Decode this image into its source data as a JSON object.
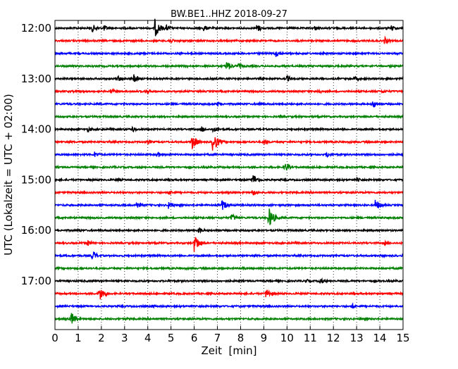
{
  "chart_data": {
    "type": "line",
    "title": "BW.BE1..HHZ 2018-09-27",
    "xlabel": "Zeit  [min]",
    "ylabel": "UTC (Lokalzeit = UTC + 02:00)",
    "xlim": [
      0,
      15
    ],
    "x_ticks": [
      0,
      1,
      2,
      3,
      4,
      5,
      6,
      7,
      8,
      9,
      10,
      11,
      12,
      13,
      14,
      15
    ],
    "x_tick_labels": [
      "0",
      "1",
      "2",
      "3",
      "4",
      "5",
      "6",
      "7",
      "8",
      "9",
      "10",
      "11",
      "12",
      "13",
      "14",
      "15"
    ],
    "y_tick_labels": [
      {
        "row": 0,
        "label": "12:00"
      },
      {
        "row": 4,
        "label": "13:00"
      },
      {
        "row": 8,
        "label": "14:00"
      },
      {
        "row": 12,
        "label": "15:00"
      },
      {
        "row": 16,
        "label": "16:00"
      },
      {
        "row": 20,
        "label": "17:00"
      }
    ],
    "vertical_grid": "dotted",
    "colors": [
      "#000000",
      "#ff0000",
      "#0000ff",
      "#008000"
    ],
    "traces": [
      {
        "start": "12:00",
        "color": "#000000",
        "events": [
          {
            "t": 1.6,
            "amp": 0.4
          },
          {
            "t": 2.1,
            "amp": 0.3
          },
          {
            "t": 4.3,
            "amp": 0.85
          },
          {
            "t": 4.8,
            "amp": 0.3
          },
          {
            "t": 6.4,
            "amp": 0.3
          },
          {
            "t": 8.7,
            "amp": 0.4
          },
          {
            "t": 11.2,
            "amp": 0.25
          },
          {
            "t": 14.5,
            "amp": 0.3
          }
        ]
      },
      {
        "start": "12:15",
        "color": "#ff0000",
        "events": [
          {
            "t": 4.9,
            "amp": 0.3
          },
          {
            "t": 14.2,
            "amp": 0.35
          }
        ]
      },
      {
        "start": "12:30",
        "color": "#0000ff",
        "events": [
          {
            "t": 9.5,
            "amp": 0.35
          },
          {
            "t": 5.4,
            "amp": 0.15
          }
        ]
      },
      {
        "start": "12:45",
        "color": "#008000",
        "events": [
          {
            "t": 7.4,
            "amp": 0.5
          },
          {
            "t": 7.9,
            "amp": 0.3
          }
        ]
      },
      {
        "start": "13:00",
        "color": "#000000",
        "events": [
          {
            "t": 2.7,
            "amp": 0.3
          },
          {
            "t": 3.4,
            "amp": 0.4
          },
          {
            "t": 10.0,
            "amp": 0.3
          },
          {
            "t": 12.9,
            "amp": 0.25
          }
        ]
      },
      {
        "start": "13:15",
        "color": "#ff0000",
        "events": [
          {
            "t": 2.4,
            "amp": 0.25
          },
          {
            "t": 3.9,
            "amp": 0.3
          },
          {
            "t": 11.3,
            "amp": 0.3
          },
          {
            "t": 14.1,
            "amp": 0.2
          }
        ]
      },
      {
        "start": "13:30",
        "color": "#0000ff",
        "events": [
          {
            "t": 7.0,
            "amp": 0.25
          },
          {
            "t": 8.8,
            "amp": 0.25
          },
          {
            "t": 13.7,
            "amp": 0.4
          }
        ]
      },
      {
        "start": "13:45",
        "color": "#008000",
        "events": [
          {
            "t": 9.7,
            "amp": 0.15
          }
        ]
      },
      {
        "start": "14:00",
        "color": "#000000",
        "events": [
          {
            "t": 1.4,
            "amp": 0.25
          },
          {
            "t": 3.3,
            "amp": 0.3
          },
          {
            "t": 6.3,
            "amp": 0.3
          },
          {
            "t": 6.8,
            "amp": 0.3
          }
        ]
      },
      {
        "start": "14:15",
        "color": "#ff0000",
        "events": [
          {
            "t": 5.9,
            "amp": 0.7
          },
          {
            "t": 6.8,
            "amp": 0.95
          },
          {
            "t": 4.0,
            "amp": 0.25
          },
          {
            "t": 9.0,
            "amp": 0.3
          }
        ]
      },
      {
        "start": "14:30",
        "color": "#0000ff",
        "events": [
          {
            "t": 1.7,
            "amp": 0.3
          },
          {
            "t": 4.4,
            "amp": 0.3
          },
          {
            "t": 11.7,
            "amp": 0.3
          }
        ]
      },
      {
        "start": "14:45",
        "color": "#008000",
        "events": [
          {
            "t": 9.9,
            "amp": 0.4
          },
          {
            "t": 2.5,
            "amp": 0.15
          }
        ]
      },
      {
        "start": "15:00",
        "color": "#000000",
        "events": [
          {
            "t": 8.5,
            "amp": 0.6
          },
          {
            "t": 2.7,
            "amp": 0.2
          },
          {
            "t": 13.0,
            "amp": 0.2
          }
        ]
      },
      {
        "start": "15:15",
        "color": "#ff0000",
        "events": [
          {
            "t": 4.9,
            "amp": 0.3
          },
          {
            "t": 8.5,
            "amp": 0.3
          }
        ]
      },
      {
        "start": "15:30",
        "color": "#0000ff",
        "events": [
          {
            "t": 3.5,
            "amp": 0.35
          },
          {
            "t": 4.9,
            "amp": 0.4
          },
          {
            "t": 7.2,
            "amp": 0.5
          },
          {
            "t": 13.8,
            "amp": 0.55
          }
        ]
      },
      {
        "start": "15:45",
        "color": "#008000",
        "events": [
          {
            "t": 9.2,
            "amp": 1.0
          },
          {
            "t": 7.6,
            "amp": 0.4
          },
          {
            "t": 3.5,
            "amp": 0.15
          }
        ]
      },
      {
        "start": "16:00",
        "color": "#000000",
        "events": [
          {
            "t": 6.2,
            "amp": 0.3
          },
          {
            "t": 1.0,
            "amp": 0.15
          }
        ]
      },
      {
        "start": "16:15",
        "color": "#ff0000",
        "events": [
          {
            "t": 6.0,
            "amp": 0.85
          },
          {
            "t": 1.4,
            "amp": 0.3
          },
          {
            "t": 14.2,
            "amp": 0.2
          }
        ]
      },
      {
        "start": "16:30",
        "color": "#0000ff",
        "events": [
          {
            "t": 1.6,
            "amp": 0.5
          },
          {
            "t": 15.0,
            "amp": 0.5
          }
        ]
      },
      {
        "start": "16:45",
        "color": "#008000",
        "events": [
          {
            "t": 8.1,
            "amp": 0.15
          }
        ]
      },
      {
        "start": "17:00",
        "color": "#000000",
        "events": [
          {
            "t": 11.4,
            "amp": 0.35
          },
          {
            "t": 10.8,
            "amp": 0.2
          }
        ]
      },
      {
        "start": "17:15",
        "color": "#ff0000",
        "events": [
          {
            "t": 1.9,
            "amp": 0.7
          },
          {
            "t": 9.1,
            "amp": 0.5
          }
        ]
      },
      {
        "start": "17:30",
        "color": "#0000ff",
        "events": [
          {
            "t": 12.8,
            "amp": 0.25
          },
          {
            "t": 4.2,
            "amp": 0.15
          }
        ]
      },
      {
        "start": "17:45",
        "color": "#008000",
        "events": [
          {
            "t": 0.7,
            "amp": 0.65
          },
          {
            "t": 3.0,
            "amp": 0.15
          }
        ]
      }
    ]
  }
}
